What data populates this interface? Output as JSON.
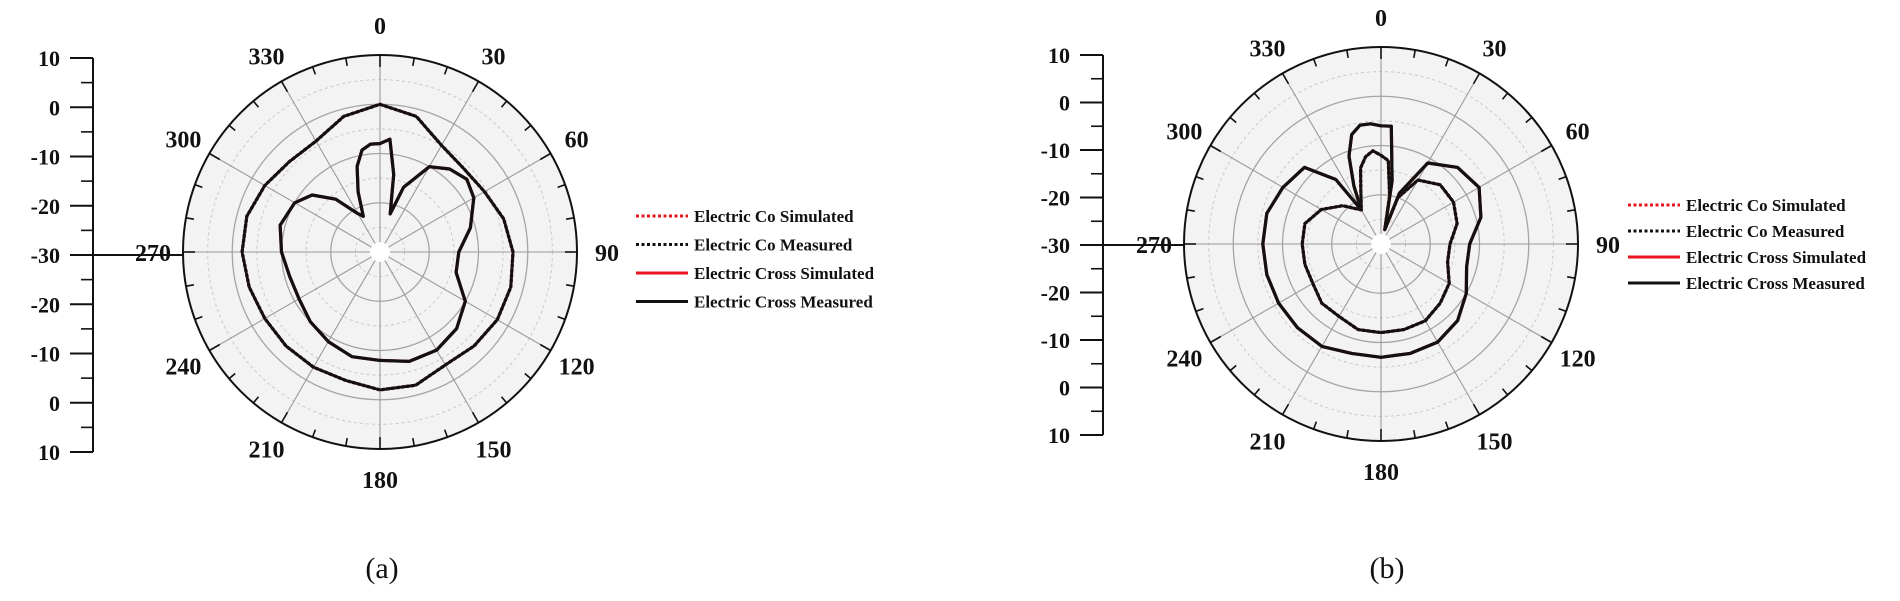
{
  "chart_data": [
    {
      "type": "polar",
      "caption": "(a)",
      "angle_labels": [
        "0",
        "30",
        "60",
        "90",
        "120",
        "150",
        "180",
        "210",
        "240",
        "270",
        "300",
        "330"
      ],
      "radial_scale_labels": [
        "10",
        "0",
        "-10",
        "-20",
        "-30",
        "-20",
        "-10",
        "0",
        "10"
      ],
      "rlim": [
        -30,
        10
      ],
      "legend": {
        "placement": "right",
        "entries": [
          {
            "label": "Electric Co Simulated",
            "color": "#e8161b",
            "style": "dotted"
          },
          {
            "label": "Electric Co Measured",
            "color": "#111111",
            "style": "dotted"
          },
          {
            "label": "Electric Cross Simulated",
            "color": "#e8161b",
            "style": "solid"
          },
          {
            "label": "Electric Cross Measured",
            "color": "#111111",
            "style": "solid"
          }
        ]
      },
      "series": [
        {
          "name": "Electric Co Simulated",
          "color": "#e8161b",
          "style": "dotted",
          "theta": [
            0,
            15,
            30,
            45,
            60,
            75,
            90,
            105,
            120,
            135,
            150,
            165,
            180,
            195,
            210,
            225,
            240,
            255,
            270,
            285,
            300,
            315,
            330,
            345,
            360
          ],
          "r": [
            0,
            -1.5,
            -5,
            -6,
            -5.5,
            -4,
            -3,
            -2.5,
            -2.5,
            -3,
            -3.5,
            -2,
            -2,
            -3,
            -3,
            -3,
            -3,
            -2.5,
            -2,
            -2,
            -3,
            -4,
            -4,
            -1.5,
            0
          ]
        },
        {
          "name": "Electric Co Measured",
          "color": "#111111",
          "style": "dotted",
          "theta": [
            0,
            15,
            30,
            45,
            60,
            75,
            90,
            105,
            120,
            135,
            150,
            165,
            180,
            195,
            210,
            225,
            240,
            255,
            270,
            285,
            300,
            315,
            330,
            345,
            360
          ],
          "r": [
            0,
            -1.5,
            -5,
            -6,
            -5.5,
            -4,
            -3,
            -2.5,
            -2.5,
            -3,
            -3.5,
            -2,
            -2,
            -3,
            -3,
            -3,
            -3,
            -2.5,
            -2,
            -2,
            -3,
            -4,
            -4,
            -1.5,
            0
          ]
        },
        {
          "name": "Electric Cross Simulated",
          "color": "#e8161b",
          "style": "solid",
          "theta": [
            0,
            5,
            10,
            15,
            20,
            30,
            40,
            50,
            60,
            75,
            90,
            105,
            120,
            135,
            150,
            165,
            180,
            195,
            210,
            225,
            240,
            255,
            270,
            285,
            300,
            310,
            320,
            330,
            335,
            340,
            345,
            350,
            355,
            360
          ],
          "r": [
            -8,
            -7,
            -14,
            -22,
            -16,
            -10,
            -8,
            -7,
            -8,
            -11,
            -14,
            -14,
            -10,
            -8,
            -7,
            -7,
            -8,
            -8,
            -9,
            -10,
            -11,
            -11,
            -10,
            -9,
            -10,
            -12,
            -16,
            -21,
            -22,
            -17,
            -12,
            -9,
            -8,
            -8
          ]
        },
        {
          "name": "Electric Cross Measured",
          "color": "#111111",
          "style": "solid",
          "theta": [
            0,
            5,
            10,
            15,
            20,
            30,
            40,
            50,
            60,
            75,
            90,
            105,
            120,
            135,
            150,
            165,
            180,
            195,
            210,
            225,
            240,
            255,
            270,
            285,
            300,
            310,
            320,
            330,
            335,
            340,
            345,
            350,
            355,
            360
          ],
          "r": [
            -8,
            -7,
            -14,
            -22,
            -16,
            -10,
            -8,
            -7,
            -8,
            -11,
            -14,
            -14,
            -10,
            -8,
            -7,
            -7,
            -8,
            -8,
            -9,
            -10,
            -11,
            -11,
            -10,
            -9,
            -10,
            -12,
            -16,
            -21,
            -22,
            -17,
            -12,
            -9,
            -8,
            -8
          ]
        }
      ]
    },
    {
      "type": "polar",
      "caption": "(b)",
      "angle_labels": [
        "0",
        "30",
        "60",
        "90",
        "120",
        "150",
        "180",
        "210",
        "240",
        "270",
        "300",
        "330"
      ],
      "radial_scale_labels": [
        "10",
        "0",
        "-10",
        "-20",
        "-30",
        "-20",
        "-10",
        "0",
        "10"
      ],
      "rlim": [
        -30,
        10
      ],
      "legend": {
        "placement": "right",
        "entries": [
          {
            "label": "Electric Co Simulated",
            "color": "#e8161b",
            "style": "dotted"
          },
          {
            "label": "Electric Co Measured",
            "color": "#111111",
            "style": "dotted"
          },
          {
            "label": "Electric Cross Simulated",
            "color": "#e8161b",
            "style": "solid"
          },
          {
            "label": "Electric Cross Measured",
            "color": "#111111",
            "style": "solid"
          }
        ]
      },
      "series": [
        {
          "name": "Electric Co Simulated",
          "color": "#e8161b",
          "style": "dotted",
          "theta": [
            0,
            5,
            10,
            15,
            20,
            30,
            45,
            60,
            75,
            90,
            105,
            120,
            135,
            150,
            165,
            180,
            195,
            210,
            225,
            240,
            255,
            270,
            285,
            300,
            315,
            330,
            340,
            345,
            350,
            355,
            360
          ],
          "r": [
            -12,
            -13,
            -20,
            -27,
            -20,
            -15,
            -13,
            -13,
            -14,
            -16,
            -16,
            -14,
            -13,
            -12,
            -12,
            -12,
            -12,
            -13,
            -13,
            -14,
            -14,
            -14,
            -14,
            -16,
            -19,
            -22,
            -18,
            -14,
            -12,
            -11,
            -12
          ]
        },
        {
          "name": "Electric Co Measured",
          "color": "#111111",
          "style": "dotted",
          "theta": [
            0,
            5,
            10,
            15,
            20,
            30,
            45,
            60,
            75,
            90,
            105,
            120,
            135,
            150,
            165,
            180,
            195,
            210,
            225,
            240,
            255,
            270,
            285,
            300,
            315,
            330,
            340,
            345,
            350,
            355,
            360
          ],
          "r": [
            -12,
            -13,
            -20,
            -27,
            -20,
            -15,
            -13,
            -13,
            -14,
            -16,
            -16,
            -14,
            -13,
            -12,
            -12,
            -12,
            -12,
            -13,
            -13,
            -14,
            -14,
            -14,
            -14,
            -16,
            -19,
            -22,
            -18,
            -14,
            -12,
            -11,
            -12
          ]
        },
        {
          "name": "Electric Cross Simulated",
          "color": "#e8161b",
          "style": "solid",
          "theta": [
            0,
            5,
            10,
            15,
            20,
            30,
            45,
            60,
            75,
            90,
            105,
            120,
            135,
            150,
            165,
            180,
            195,
            210,
            225,
            240,
            255,
            270,
            285,
            300,
            315,
            325,
            330,
            335,
            340,
            345,
            350,
            355,
            360
          ],
          "r": [
            -6,
            -6,
            -17,
            -27,
            -19,
            -11,
            -8,
            -7,
            -9,
            -12,
            -12,
            -10,
            -8,
            -7,
            -7,
            -7,
            -7,
            -6,
            -6,
            -6,
            -6,
            -6,
            -6,
            -7,
            -8,
            -14,
            -22,
            -17,
            -11,
            -7,
            -5.5,
            -5.5,
            -6
          ]
        },
        {
          "name": "Electric Cross Measured",
          "color": "#111111",
          "style": "solid",
          "theta": [
            0,
            5,
            10,
            15,
            20,
            30,
            45,
            60,
            75,
            90,
            105,
            120,
            135,
            150,
            165,
            180,
            195,
            210,
            225,
            240,
            255,
            270,
            285,
            300,
            315,
            325,
            330,
            335,
            340,
            345,
            350,
            355,
            360
          ],
          "r": [
            -6,
            -6,
            -17,
            -27,
            -19,
            -11,
            -8,
            -7,
            -9,
            -12,
            -12,
            -10,
            -8,
            -7,
            -7,
            -7,
            -7,
            -6,
            -6,
            -6,
            -6,
            -6,
            -6,
            -7,
            -8,
            -14,
            -22,
            -17,
            -11,
            -7,
            -5.5,
            -5.5,
            -6
          ]
        }
      ]
    }
  ]
}
